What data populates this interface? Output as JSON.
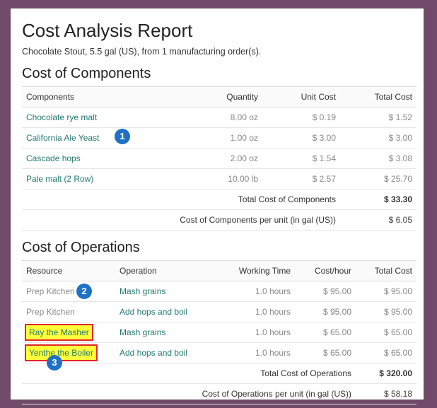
{
  "report": {
    "title": "Cost Analysis Report",
    "subtitle": "Chocolate Stout, 5.5 gal (US), from 1 manufacturing order(s)."
  },
  "components": {
    "section_title": "Cost of Components",
    "headers": [
      "Components",
      "Quantity",
      "Unit Cost",
      "Total Cost"
    ],
    "rows": [
      {
        "name": "Chocolate rye malt",
        "quantity": "8.00 oz",
        "unit_cost": "$ 0.19",
        "total_cost": "$ 1.52"
      },
      {
        "name": "California Ale Yeast",
        "quantity": "1.00 oz",
        "unit_cost": "$ 3.00",
        "total_cost": "$ 3.00"
      },
      {
        "name": "Cascade hops",
        "quantity": "2.00 oz",
        "unit_cost": "$ 1.54",
        "total_cost": "$ 3.08"
      },
      {
        "name": "Pale malt (2 Row)",
        "quantity": "10.00 lb",
        "unit_cost": "$ 2.57",
        "total_cost": "$ 25.70"
      }
    ],
    "total_label": "Total Cost of Components",
    "total_value": "$ 33.30",
    "per_unit_label": "Cost of Components per unit (in gal (US))",
    "per_unit_value": "$ 6.05"
  },
  "operations": {
    "section_title": "Cost of Operations",
    "headers": [
      "Resource",
      "Operation",
      "Working Time",
      "Cost/hour",
      "Total Cost"
    ],
    "rows": [
      {
        "resource": "Prep Kitchen",
        "operation": "Mash grains",
        "working_time": "1.0 hours",
        "cost_hour": "$ 95.00",
        "total_cost": "$ 95.00"
      },
      {
        "resource": "Prep Kitchen",
        "operation": "Add hops and boil",
        "working_time": "1.0 hours",
        "cost_hour": "$ 95.00",
        "total_cost": "$ 95.00"
      },
      {
        "resource": "Ray the Masher",
        "operation": "Mash grains",
        "working_time": "1.0 hours",
        "cost_hour": "$ 65.00",
        "total_cost": "$ 65.00"
      },
      {
        "resource": "Yenthe the Boiler",
        "operation": "Add hops and boil",
        "working_time": "1.0 hours",
        "cost_hour": "$ 65.00",
        "total_cost": "$ 65.00"
      }
    ],
    "total_label": "Total Cost of Operations",
    "total_value": "$ 320.00",
    "per_unit_label": "Cost of Operations per unit (in gal (US))",
    "per_unit_value": "$ 58.18"
  },
  "callouts": [
    "1",
    "2",
    "3"
  ],
  "colors": {
    "badge": "#1f71c6",
    "highlight": "#ffff3a",
    "highlight_border": "#e0272b",
    "link": "#227a72",
    "frame": "#6f4a69"
  }
}
